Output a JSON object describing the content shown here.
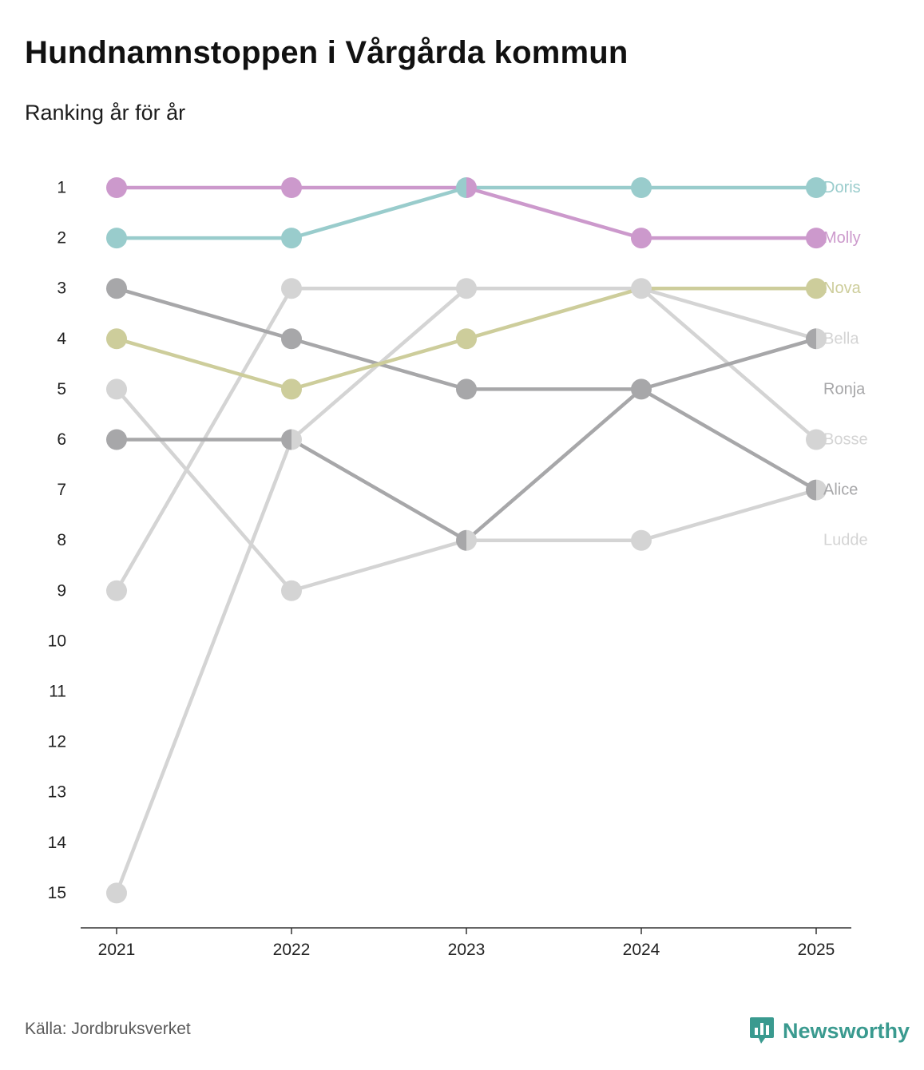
{
  "title": "Hundnamnstoppen i Vårgårda kommun",
  "subtitle": "Ranking år för år",
  "source": "Källa: Jordbruksverket",
  "brand": {
    "name": "Newsworthy",
    "logo_icon": "bar-chart-bubble-icon",
    "color": "#3a9a8f"
  },
  "chart_data": {
    "type": "line",
    "title": "Hundnamnstoppen i Vårgårda kommun",
    "subtitle": "Ranking år för år",
    "x": [
      "2021",
      "2022",
      "2023",
      "2024",
      "2025"
    ],
    "y_ticks": [
      "1",
      "2",
      "3",
      "4",
      "5",
      "6",
      "7",
      "8",
      "9",
      "10",
      "11",
      "12",
      "13",
      "14",
      "15"
    ],
    "ylim": [
      1,
      15
    ],
    "y_inverted": true,
    "xlabel": "",
    "ylabel": "",
    "grid": false,
    "series": [
      {
        "name": "Ludde",
        "color": "#d4d4d4",
        "values": [
          5,
          9,
          8,
          8,
          7
        ]
      },
      {
        "name": "Bosse",
        "color": "#d4d4d4",
        "values": [
          15,
          6,
          3,
          3,
          6
        ]
      },
      {
        "name": "Bella",
        "color": "#d4d4d4",
        "values": [
          9,
          3,
          3,
          3,
          4
        ]
      },
      {
        "name": "Alice",
        "color": "#a7a7a9",
        "values": [
          6,
          6,
          8,
          5,
          7
        ]
      },
      {
        "name": "Ronja",
        "color": "#a7a7a9",
        "values": [
          3,
          4,
          5,
          5,
          4
        ]
      },
      {
        "name": "Nova",
        "color": "#cdcd9b",
        "values": [
          4,
          5,
          4,
          3,
          3
        ]
      },
      {
        "name": "Molly",
        "color": "#cc99cc",
        "values": [
          1,
          1,
          1,
          2,
          2
        ]
      },
      {
        "name": "Doris",
        "color": "#99cccc",
        "values": [
          2,
          2,
          1,
          1,
          1
        ]
      }
    ],
    "end_labels": [
      {
        "name": "Doris",
        "rank": 1,
        "color": "#99cccc"
      },
      {
        "name": "Molly",
        "rank": 2,
        "color": "#cc99cc"
      },
      {
        "name": "Nova",
        "rank": 3,
        "color": "#cdcd9b"
      },
      {
        "name": "Bella",
        "rank": 4,
        "color": "#d4d4d4"
      },
      {
        "name": "Ronja",
        "rank": 5,
        "color": "#a7a7a9"
      },
      {
        "name": "Bosse",
        "rank": 6,
        "color": "#d4d4d4"
      },
      {
        "name": "Alice",
        "rank": 7,
        "color": "#a7a7a9"
      },
      {
        "name": "Ludde",
        "rank": 8,
        "color": "#d4d4d4"
      }
    ]
  }
}
